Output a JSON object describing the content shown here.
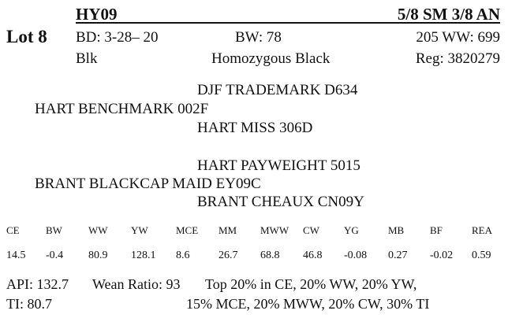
{
  "lot": "Lot 8",
  "animal": {
    "id": "HY09",
    "breed": "5/8 SM 3/8 AN",
    "bd": "BD: 3-28– 20",
    "bw": "BW: 78",
    "ww": "205 WW: 699",
    "color": "Blk",
    "genotype": "Homozygous Black",
    "reg": "Reg: 3820279"
  },
  "pedigree": {
    "sire_sire": "DJF TRADEMARK D634",
    "sire": "HART BENCHMARK 002F",
    "sire_dam": "HART MISS 306D",
    "dam_sire": "HART PAYWEIGHT 5015",
    "dam": "BRANT BLACKCAP MAID EY09C",
    "dam_dam": "BRANT CHEAUX CN09Y"
  },
  "epds": {
    "headers": [
      "CE",
      "BW",
      "WW",
      "YW",
      "MCE",
      "MM",
      "MWW",
      "CW",
      "YG",
      "MB",
      "BF",
      "REA"
    ],
    "values": [
      "14.5",
      "-0.4",
      "80.9",
      "128.1",
      "8.6",
      "26.7",
      "68.8",
      "46.8",
      "-0.08",
      "0.27",
      "-0.02",
      "0.59"
    ]
  },
  "footer": {
    "api": "API: 132.7",
    "wean": "Wean Ratio: 93",
    "top_line1": "Top 20% in CE,  20% WW,  20% YW,",
    "ti": "TI: 80.7",
    "top_line2": "15% MCE,  20% MWW,  20% CW,  30% TI"
  }
}
